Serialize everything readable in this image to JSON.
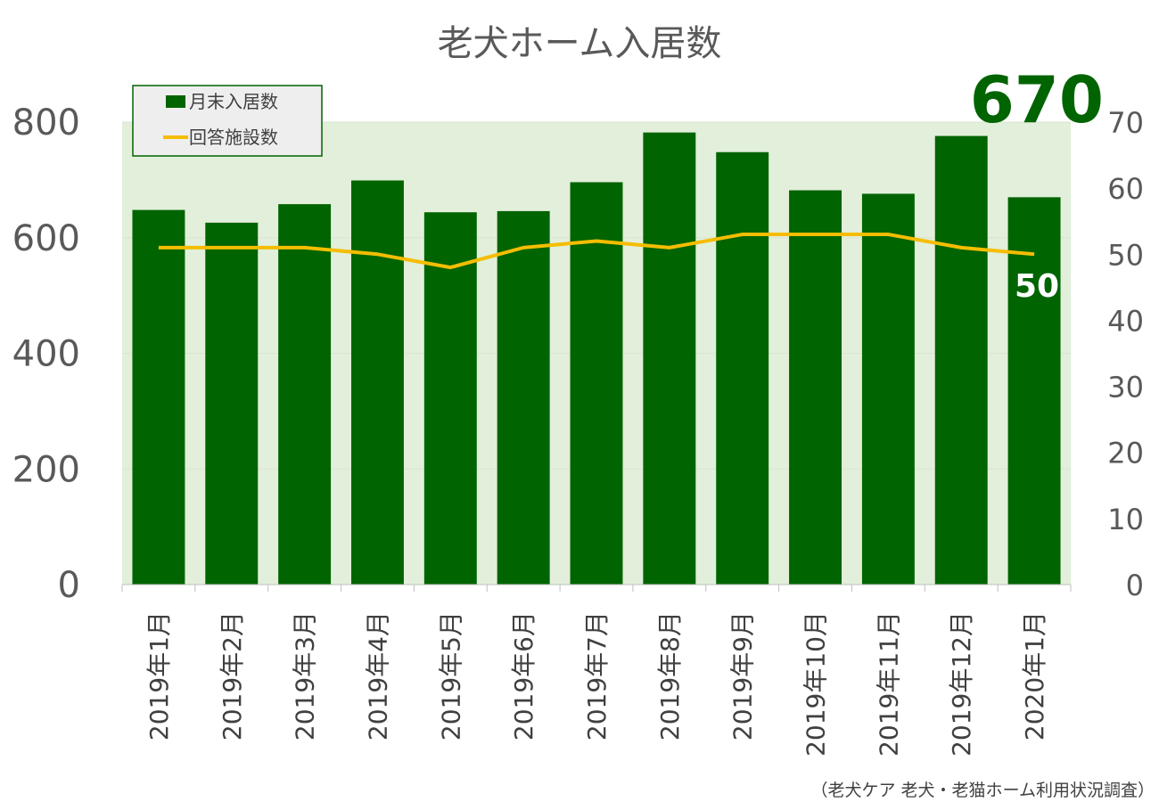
{
  "colors": {
    "bar": "#006400",
    "line": "#f5bd00",
    "plot_bg": "#e2efda",
    "grid": "#d9e5d0",
    "legend_border": "#006400"
  },
  "chart_data": {
    "type": "bar",
    "title": "老犬ホーム入居数",
    "categories": [
      "2019年1月",
      "2019年2月",
      "2019年3月",
      "2019年4月",
      "2019年5月",
      "2019年6月",
      "2019年7月",
      "2019年8月",
      "2019年9月",
      "2019年10月",
      "2019年11月",
      "2019年12月",
      "2020年1月"
    ],
    "series": [
      {
        "name": "月末入居数",
        "type": "bar",
        "axis": "left",
        "values": [
          648,
          626,
          658,
          699,
          644,
          646,
          696,
          782,
          748,
          682,
          676,
          776,
          670
        ]
      },
      {
        "name": "回答施設数",
        "type": "line",
        "axis": "right",
        "values": [
          51,
          51,
          51,
          50,
          48,
          51,
          52,
          51,
          53,
          53,
          53,
          51,
          50
        ]
      }
    ],
    "ylim": [
      0,
      800
    ],
    "yticks": [
      "0",
      "200",
      "400",
      "600",
      "800"
    ],
    "y2lim": [
      0,
      70
    ],
    "y2ticks": [
      "0",
      "10",
      "20",
      "30",
      "40",
      "50",
      "60",
      "70"
    ],
    "grid": true,
    "legend_position": "top-left",
    "annotations": {
      "last_bar_value": "670",
      "last_line_value": "50"
    }
  },
  "source_note": "（老犬ケア 老犬・老猫ホーム利用状況調査）"
}
